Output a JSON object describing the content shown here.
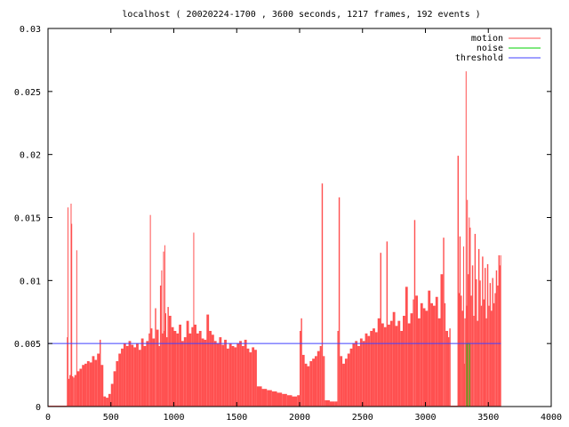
{
  "chart_data": {
    "type": "area",
    "title": "localhost ( 20020224-1700 , 3600 seconds, 1217 frames, 192 events )",
    "xlabel": "",
    "ylabel": "",
    "xlim": [
      0,
      4000
    ],
    "ylim": [
      0,
      0.03
    ],
    "x_ticks": [
      {
        "value": 0,
        "label": "0"
      },
      {
        "value": 500,
        "label": "500"
      },
      {
        "value": 1000,
        "label": "1000"
      },
      {
        "value": 1500,
        "label": "1500"
      },
      {
        "value": 2000,
        "label": "2000"
      },
      {
        "value": 2500,
        "label": "2500"
      },
      {
        "value": 3000,
        "label": "3000"
      },
      {
        "value": 3500,
        "label": "3500"
      },
      {
        "value": 4000,
        "label": "4000"
      }
    ],
    "y_ticks": [
      {
        "value": 0,
        "label": "0"
      },
      {
        "value": 0.005,
        "label": "0.005"
      },
      {
        "value": 0.01,
        "label": "0.01"
      },
      {
        "value": 0.015,
        "label": "0.015"
      },
      {
        "value": 0.02,
        "label": "0.02"
      },
      {
        "value": 0.025,
        "label": "0.025"
      },
      {
        "value": 0.03,
        "label": "0.03"
      }
    ],
    "grid": false,
    "legend_position": "top-right",
    "series": [
      {
        "name": "motion",
        "color": "#ff5050",
        "style": "impulses",
        "points": [
          [
            0,
            0
          ],
          [
            100,
            0
          ],
          [
            140,
            0
          ],
          [
            150,
            0.0055
          ],
          [
            155,
            0.0158
          ],
          [
            160,
            0.0022
          ],
          [
            170,
            0.0025
          ],
          [
            180,
            0.0161
          ],
          [
            185,
            0.0145
          ],
          [
            190,
            0.0024
          ],
          [
            200,
            0.0023
          ],
          [
            210,
            0.0025
          ],
          [
            225,
            0.0124
          ],
          [
            230,
            0.0028
          ],
          [
            250,
            0.003
          ],
          [
            270,
            0.0033
          ],
          [
            290,
            0.0034
          ],
          [
            310,
            0.0036
          ],
          [
            330,
            0.0035
          ],
          [
            350,
            0.004
          ],
          [
            370,
            0.0037
          ],
          [
            390,
            0.0042
          ],
          [
            410,
            0.0053
          ],
          [
            420,
            0.0033
          ],
          [
            440,
            0.0008
          ],
          [
            460,
            0.0007
          ],
          [
            480,
            0.001
          ],
          [
            500,
            0.0018
          ],
          [
            520,
            0.0028
          ],
          [
            540,
            0.0036
          ],
          [
            560,
            0.0042
          ],
          [
            580,
            0.0046
          ],
          [
            600,
            0.005
          ],
          [
            620,
            0.0048
          ],
          [
            640,
            0.0052
          ],
          [
            660,
            0.0049
          ],
          [
            680,
            0.0047
          ],
          [
            700,
            0.005
          ],
          [
            720,
            0.0045
          ],
          [
            740,
            0.0054
          ],
          [
            760,
            0.0048
          ],
          [
            780,
            0.0052
          ],
          [
            800,
            0.0058
          ],
          [
            810,
            0.0152
          ],
          [
            815,
            0.0062
          ],
          [
            830,
            0.0054
          ],
          [
            850,
            0.0078
          ],
          [
            860,
            0.0061
          ],
          [
            880,
            0.0048
          ],
          [
            890,
            0.0096
          ],
          [
            900,
            0.0108
          ],
          [
            905,
            0.0058
          ],
          [
            915,
            0.0123
          ],
          [
            920,
            0.006
          ],
          [
            925,
            0.0128
          ],
          [
            930,
            0.0074
          ],
          [
            940,
            0.0055
          ],
          [
            950,
            0.0079
          ],
          [
            960,
            0.0072
          ],
          [
            980,
            0.0063
          ],
          [
            1000,
            0.006
          ],
          [
            1020,
            0.0058
          ],
          [
            1040,
            0.0065
          ],
          [
            1060,
            0.0052
          ],
          [
            1080,
            0.0055
          ],
          [
            1100,
            0.0068
          ],
          [
            1120,
            0.0058
          ],
          [
            1140,
            0.0063
          ],
          [
            1155,
            0.0138
          ],
          [
            1160,
            0.0065
          ],
          [
            1180,
            0.0058
          ],
          [
            1200,
            0.006
          ],
          [
            1220,
            0.0054
          ],
          [
            1240,
            0.0053
          ],
          [
            1260,
            0.0073
          ],
          [
            1280,
            0.006
          ],
          [
            1300,
            0.0057
          ],
          [
            1320,
            0.0052
          ],
          [
            1340,
            0.005
          ],
          [
            1360,
            0.0055
          ],
          [
            1380,
            0.0049
          ],
          [
            1400,
            0.0053
          ],
          [
            1420,
            0.0046
          ],
          [
            1440,
            0.005
          ],
          [
            1460,
            0.0048
          ],
          [
            1480,
            0.0047
          ],
          [
            1500,
            0.005
          ],
          [
            1520,
            0.0052
          ],
          [
            1540,
            0.0048
          ],
          [
            1560,
            0.0053
          ],
          [
            1580,
            0.0046
          ],
          [
            1600,
            0.0043
          ],
          [
            1620,
            0.0047
          ],
          [
            1640,
            0.0045
          ],
          [
            1660,
            0.0016
          ],
          [
            1700,
            0.0014
          ],
          [
            1740,
            0.0013
          ],
          [
            1780,
            0.0012
          ],
          [
            1820,
            0.0011
          ],
          [
            1860,
            0.001
          ],
          [
            1900,
            0.0009
          ],
          [
            1940,
            0.0008
          ],
          [
            1980,
            0.0009
          ],
          [
            2000,
            0.006
          ],
          [
            2010,
            0.007
          ],
          [
            2020,
            0.0041
          ],
          [
            2040,
            0.0034
          ],
          [
            2060,
            0.0032
          ],
          [
            2080,
            0.0036
          ],
          [
            2100,
            0.0038
          ],
          [
            2120,
            0.004
          ],
          [
            2140,
            0.0044
          ],
          [
            2160,
            0.0048
          ],
          [
            2175,
            0.0177
          ],
          [
            2185,
            0.004
          ],
          [
            2200,
            0.0005
          ],
          [
            2240,
            0.0004
          ],
          [
            2280,
            0.0004
          ],
          [
            2300,
            0.006
          ],
          [
            2310,
            0.0166
          ],
          [
            2320,
            0.004
          ],
          [
            2340,
            0.0034
          ],
          [
            2360,
            0.0038
          ],
          [
            2380,
            0.0042
          ],
          [
            2400,
            0.0046
          ],
          [
            2420,
            0.005
          ],
          [
            2440,
            0.0052
          ],
          [
            2460,
            0.0048
          ],
          [
            2480,
            0.0054
          ],
          [
            2500,
            0.0052
          ],
          [
            2520,
            0.0058
          ],
          [
            2540,
            0.0056
          ],
          [
            2560,
            0.006
          ],
          [
            2580,
            0.0062
          ],
          [
            2600,
            0.0059
          ],
          [
            2620,
            0.007
          ],
          [
            2640,
            0.0122
          ],
          [
            2650,
            0.0066
          ],
          [
            2670,
            0.0063
          ],
          [
            2690,
            0.0131
          ],
          [
            2700,
            0.0065
          ],
          [
            2720,
            0.0068
          ],
          [
            2740,
            0.0075
          ],
          [
            2760,
            0.0064
          ],
          [
            2780,
            0.0068
          ],
          [
            2800,
            0.006
          ],
          [
            2820,
            0.0072
          ],
          [
            2840,
            0.0095
          ],
          [
            2860,
            0.0066
          ],
          [
            2880,
            0.0074
          ],
          [
            2900,
            0.0085
          ],
          [
            2910,
            0.0148
          ],
          [
            2920,
            0.0088
          ],
          [
            2940,
            0.007
          ],
          [
            2960,
            0.0082
          ],
          [
            2980,
            0.0078
          ],
          [
            3000,
            0.0076
          ],
          [
            3020,
            0.0092
          ],
          [
            3040,
            0.0082
          ],
          [
            3060,
            0.008
          ],
          [
            3080,
            0.0087
          ],
          [
            3100,
            0.007
          ],
          [
            3120,
            0.0105
          ],
          [
            3140,
            0.0134
          ],
          [
            3150,
            0.0082
          ],
          [
            3160,
            0.006
          ],
          [
            3180,
            0.0055
          ],
          [
            3190,
            0.0062
          ],
          [
            3200,
            0
          ],
          [
            3220,
            0
          ],
          [
            3240,
            0
          ],
          [
            3255,
            0.0199
          ],
          [
            3265,
            0.009
          ],
          [
            3270,
            0.0135
          ],
          [
            3280,
            0.0088
          ],
          [
            3290,
            0.0076
          ],
          [
            3300,
            0.0127
          ],
          [
            3305,
            0.0034
          ],
          [
            3310,
            0.007
          ],
          [
            3320,
            0.0266
          ],
          [
            3325,
            0.008
          ],
          [
            3330,
            0.0164
          ],
          [
            3335,
            0.0105
          ],
          [
            3345,
            0.015
          ],
          [
            3350,
            0.0142
          ],
          [
            3360,
            0.0088
          ],
          [
            3370,
            0.0112
          ],
          [
            3380,
            0.0072
          ],
          [
            3390,
            0.0137
          ],
          [
            3400,
            0.0101
          ],
          [
            3410,
            0.0068
          ],
          [
            3420,
            0.0125
          ],
          [
            3430,
            0.01
          ],
          [
            3440,
            0.008
          ],
          [
            3450,
            0.0119
          ],
          [
            3460,
            0.0085
          ],
          [
            3470,
            0.011
          ],
          [
            3480,
            0.007
          ],
          [
            3490,
            0.0113
          ],
          [
            3500,
            0.008
          ],
          [
            3510,
            0.0098
          ],
          [
            3520,
            0.0076
          ],
          [
            3530,
            0.0102
          ],
          [
            3540,
            0.0082
          ],
          [
            3550,
            0.009
          ],
          [
            3560,
            0.0108
          ],
          [
            3570,
            0.0096
          ],
          [
            3580,
            0.012
          ],
          [
            3590,
            0.0112
          ],
          [
            3595,
            0.012
          ]
        ]
      },
      {
        "name": "noise",
        "color": "#00d000",
        "style": "lines",
        "points": [
          [
            3330,
            0
          ],
          [
            3330,
            0.005
          ],
          [
            3350,
            0.005
          ],
          [
            3350,
            0
          ]
        ]
      },
      {
        "name": "threshold",
        "color": "#4040ff",
        "style": "lines",
        "points": [
          [
            0,
            0.005
          ],
          [
            3600,
            0.005
          ]
        ]
      }
    ]
  }
}
